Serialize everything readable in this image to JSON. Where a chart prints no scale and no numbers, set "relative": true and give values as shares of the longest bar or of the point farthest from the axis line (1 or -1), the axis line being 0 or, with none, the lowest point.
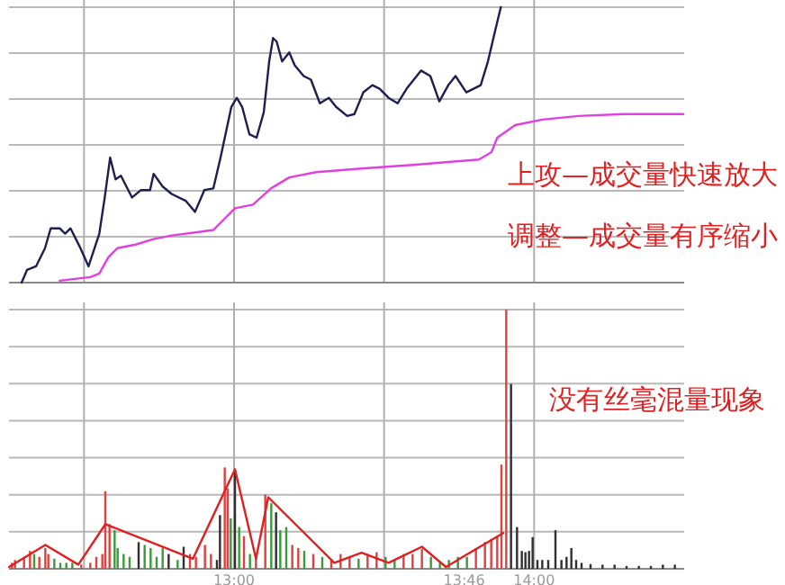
{
  "chart_data": [
    {
      "type": "line",
      "relative": true,
      "xlim": [
        12.25,
        14.5
      ],
      "xticks": [
        {
          "value": 12.5,
          "label": null
        },
        {
          "value": 13,
          "label": null
        },
        {
          "value": 13.5,
          "label": null
        },
        {
          "value": 14,
          "label": null
        }
      ],
      "tick_labels": false,
      "grid": true,
      "annotations": [
        "上攻—成交量快速放大",
        "调整—成交量有序缩小"
      ],
      "series": [
        {
          "color": "#1e1e50",
          "x": [
            12.292,
            12.31,
            12.34,
            12.37,
            12.389,
            12.419,
            12.437,
            12.455,
            12.485,
            12.515,
            12.551,
            12.569,
            12.587,
            12.605,
            12.623,
            12.66,
            12.69,
            12.72,
            12.732,
            12.762,
            12.792,
            12.84,
            12.87,
            12.901,
            12.931,
            12.955,
            12.991,
            13.009,
            13.027,
            13.051,
            13.075,
            13.099,
            13.117,
            13.13,
            13.142,
            13.16,
            13.184,
            13.202,
            13.232,
            13.256,
            13.286,
            13.316,
            13.34,
            13.377,
            13.401,
            13.431,
            13.461,
            13.485,
            13.515,
            13.545,
            13.575,
            13.623,
            13.654,
            13.684,
            13.714,
            13.738,
            13.774,
            13.798,
            13.822,
            13.846,
            13.87,
            13.889
          ],
          "values": [
            0,
            0.046,
            0.059,
            0.125,
            0.197,
            0.197,
            0.178,
            0.197,
            0.132,
            0.059,
            0.178,
            0.309,
            0.454,
            0.375,
            0.388,
            0.309,
            0.336,
            0.336,
            0.395,
            0.349,
            0.322,
            0.296,
            0.257,
            0.336,
            0.342,
            0.454,
            0.638,
            0.671,
            0.638,
            0.539,
            0.526,
            0.618,
            0.803,
            0.888,
            0.875,
            0.803,
            0.836,
            0.789,
            0.75,
            0.737,
            0.651,
            0.671,
            0.638,
            0.605,
            0.612,
            0.691,
            0.717,
            0.704,
            0.671,
            0.651,
            0.704,
            0.77,
            0.75,
            0.658,
            0.717,
            0.75,
            0.691,
            0.704,
            0.717,
            0.803,
            0.914,
            1
          ]
        },
        {
          "color": "#e040e0",
          "x": [
            12.419,
            12.521,
            12.551,
            12.581,
            12.611,
            12.672,
            12.732,
            12.792,
            12.883,
            12.931,
            12.973,
            13.003,
            13.063,
            13.123,
            13.184,
            13.274,
            13.425,
            13.605,
            13.816,
            13.858,
            13.877,
            13.937,
            14.027,
            14.148,
            14.298,
            14.497
          ],
          "values": [
            0.007,
            0.02,
            0.033,
            0.092,
            0.125,
            0.138,
            0.158,
            0.171,
            0.184,
            0.191,
            0.237,
            0.27,
            0.283,
            0.342,
            0.382,
            0.401,
            0.414,
            0.428,
            0.447,
            0.474,
            0.526,
            0.572,
            0.592,
            0.605,
            0.612,
            0.612
          ]
        }
      ]
    },
    {
      "type": "bar",
      "relative": true,
      "xlim": [
        12.25,
        14.5
      ],
      "xticks": [
        {
          "value": 12.5,
          "label": null
        },
        {
          "value": 13,
          "label": "13:00"
        },
        {
          "value": 13.5,
          "label": null
        },
        {
          "value": 13.767,
          "label": "13:46"
        },
        {
          "value": 14,
          "label": "14:00"
        }
      ],
      "tick_labels": "x",
      "grid": true,
      "annotations": [
        "没有丝毫混量现象"
      ],
      "series": [
        {
          "x": [
            12.26,
            12.27,
            12.3,
            12.32,
            12.334,
            12.351,
            12.371,
            12.381,
            12.401,
            12.421,
            12.441,
            12.461,
            12.491,
            12.521,
            12.541,
            12.561,
            12.571,
            12.585,
            12.602,
            12.612,
            12.632,
            12.652,
            12.682,
            12.702,
            12.722,
            12.742,
            12.762,
            12.782,
            12.812,
            12.832,
            12.853,
            12.873,
            12.903,
            12.923,
            12.943,
            12.953,
            12.969,
            12.979,
            12.989,
            13.003,
            13.017,
            13.033,
            13.053,
            13.073,
            13.104,
            13.124,
            13.14,
            13.154,
            13.174,
            13.194,
            13.214,
            13.234,
            13.264,
            13.294,
            13.324,
            13.355,
            13.385,
            13.415,
            13.445,
            13.475,
            13.505,
            13.535,
            13.565,
            13.595,
            13.626,
            13.656,
            13.686,
            13.716,
            13.746,
            13.776,
            13.806,
            13.836,
            13.857,
            13.877,
            13.891,
            13.907,
            13.923,
            13.943,
            13.959,
            13.971,
            13.983,
            13.995,
            14.011,
            14.027,
            14.047,
            14.071,
            14.091,
            14.108,
            14.124,
            14.14,
            14.158,
            14.188,
            14.228,
            14.268,
            14.308,
            14.349,
            14.389,
            14.429,
            14.469
          ],
          "values": [
            0.023,
            0.034,
            0.046,
            0.069,
            0.057,
            0.046,
            0.08,
            0.057,
            0.039,
            0.023,
            0.023,
            0.023,
            0.016,
            0.023,
            0.046,
            0.057,
            0.299,
            0.172,
            0.149,
            0.08,
            0.057,
            0.046,
            0.103,
            0.092,
            0.08,
            0.046,
            0.08,
            0.057,
            0.034,
            0.085,
            0.057,
            0.046,
            0.092,
            0.057,
            0.034,
            0.207,
            0.391,
            0.31,
            0.195,
            0.379,
            0.161,
            0.126,
            0.057,
            0.057,
            0.287,
            0.253,
            0.218,
            0.149,
            0.161,
            0.092,
            0.08,
            0.069,
            0.057,
            0.046,
            0.034,
            0.057,
            0.046,
            0.039,
            0.057,
            0.064,
            0.046,
            0.034,
            0.057,
            0.057,
            0.076,
            0.046,
            0.023,
            0.034,
            0.046,
            0.046,
            0.08,
            0.103,
            0.115,
            0.126,
            0.402,
            1,
            0.713,
            0.161,
            0.069,
            0.064,
            0.069,
            0.122,
            0.034,
            0.034,
            0.034,
            0.149,
            0.034,
            0.046,
            0.08,
            0.034,
            0.023,
            0.018,
            0.016,
            0.016,
            0.011,
            0.011,
            0.011,
            0.016,
            0.016
          ],
          "colors": [
            "#e04040",
            "#e04040",
            "#e04040",
            "#e04040",
            "#3a9a3a",
            "#e04040",
            "#e04040",
            "#e04040",
            "#3a9a3a",
            "#3a9a3a",
            "#3a9a3a",
            "#3a9a3a",
            "#e04040",
            "#e04040",
            "#e04040",
            "#e04040",
            "#e04040",
            "#e04040",
            "#3a9a3a",
            "#3a9a3a",
            "#3a9a3a",
            "#3a9a3a",
            "#303030",
            "#3a9a3a",
            "#3a9a3a",
            "#3a9a3a",
            "#3a9a3a",
            "#303030",
            "#3a9a3a",
            "#303030",
            "#e04040",
            "#e04040",
            "#e04040",
            "#e04040",
            "#303030",
            "#303030",
            "#e04040",
            "#e04040",
            "#3a9a3a",
            "#303030",
            "#3a9a3a",
            "#e04040",
            "#3a9a3a",
            "#e04040",
            "#e04040",
            "#3a9a3a",
            "#303030",
            "#3a9a3a",
            "#3a9a3a",
            "#e04040",
            "#e04040",
            "#3a9a3a",
            "#e04040",
            "#3a9a3a",
            "#e04040",
            "#e04040",
            "#e04040",
            "#3a9a3a",
            "#e04040",
            "#e04040",
            "#3a9a3a",
            "#3a9a3a",
            "#e04040",
            "#e04040",
            "#e04040",
            "#3a9a3a",
            "#3a9a3a",
            "#3a9a3a",
            "#3a9a3a",
            "#3a9a3a",
            "#e04040",
            "#e04040",
            "#e04040",
            "#e04040",
            "#e04040",
            "#e04040",
            "#303030",
            "#303030",
            "#303030",
            "#303030",
            "#303030",
            "#303030",
            "#303030",
            "#303030",
            "#303030",
            "#303030",
            "#303030",
            "#303030",
            "#303030",
            "#303030",
            "#303030",
            "#303030",
            "#303030",
            "#303030",
            "#303030",
            "#303030",
            "#303030",
            "#303030",
            "#303030"
          ]
        },
        {
          "type": "line",
          "color": "#e02020",
          "x": [
            12.25,
            12.371,
            12.481,
            12.571,
            12.863,
            13.003,
            13.073,
            13.114,
            13.334,
            13.425,
            13.515,
            13.626,
            13.706,
            13.897
          ],
          "values": [
            0.007,
            0.092,
            0.016,
            0.172,
            0.039,
            0.384,
            0.039,
            0.276,
            0.023,
            0.062,
            0.023,
            0.085,
            0.007,
            0.138
          ]
        }
      ]
    }
  ]
}
